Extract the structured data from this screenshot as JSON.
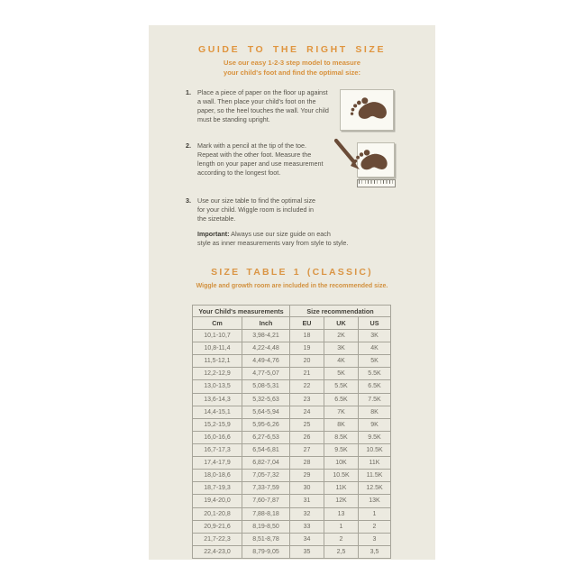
{
  "guide": {
    "title": "GUIDE TO THE RIGHT SIZE",
    "subtitle": "Use our easy 1-2-3 step model to measure\nyour child's foot and find the optimal size:",
    "steps": [
      {
        "number": "1.",
        "text": "Place a piece of paper on the floor up against\na wall. Then place your child's foot on the\npaper, so the heel touches the wall. Your child\nmust be standing upright."
      },
      {
        "number": "2.",
        "text": "Mark with a pencil at the tip of the toe.\nRepeat with the other foot. Measure the\nlength on your paper and use measurement\naccording to the longest foot."
      },
      {
        "number": "3.",
        "text": "Use our size table to find the optimal size\nfor your child. Wiggle room is included in\nthe sizetable."
      }
    ],
    "important_label": "Important:",
    "important_text": " Always use our size guide on each\nstyle as inner measurements vary from style to style.",
    "icons": [
      "footprint-icon",
      "footprint-pencil-icon",
      "ruler-icon"
    ]
  },
  "size_table": {
    "heading": "SIZE TABLE 1 (CLASSIC)",
    "caption": "Wiggle and growth room are included in the recommended size.",
    "group_headers": [
      "Your Child's measurements",
      "Size recommendation"
    ],
    "columns": [
      "Cm",
      "Inch",
      "EU",
      "UK",
      "US"
    ],
    "rows": [
      [
        "10,1-10,7",
        "3,98-4,21",
        "18",
        "2K",
        "3K"
      ],
      [
        "10,8-11,4",
        "4,22-4,48",
        "19",
        "3K",
        "4K"
      ],
      [
        "11,5-12,1",
        "4,49-4,76",
        "20",
        "4K",
        "5K"
      ],
      [
        "12,2-12,9",
        "4,77-5,07",
        "21",
        "5K",
        "5.5K"
      ],
      [
        "13,0-13,5",
        "5,08-5,31",
        "22",
        "5.5K",
        "6.5K"
      ],
      [
        "13,6-14,3",
        "5,32-5,63",
        "23",
        "6.5K",
        "7.5K"
      ],
      [
        "14,4-15,1",
        "5,64-5,94",
        "24",
        "7K",
        "8K"
      ],
      [
        "15,2-15,9",
        "5,95-6,26",
        "25",
        "8K",
        "9K"
      ],
      [
        "16,0-16,6",
        "6,27-6,53",
        "26",
        "8.5K",
        "9.5K"
      ],
      [
        "16,7-17,3",
        "6,54-6,81",
        "27",
        "9.5K",
        "10.5K"
      ],
      [
        "17,4-17,9",
        "6,82-7,04",
        "28",
        "10K",
        "11K"
      ],
      [
        "18,0-18,6",
        "7,05-7,32",
        "29",
        "10.5K",
        "11.5K"
      ],
      [
        "18,7-19,3",
        "7,33-7,59",
        "30",
        "11K",
        "12.5K"
      ],
      [
        "19,4-20,0",
        "7,60-7,87",
        "31",
        "12K",
        "13K"
      ],
      [
        "20,1-20,8",
        "7,88-8,18",
        "32",
        "13",
        "1"
      ],
      [
        "20,9-21,6",
        "8,19-8,50",
        "33",
        "1",
        "2"
      ],
      [
        "21,7-22,3",
        "8,51-8,78",
        "34",
        "2",
        "3"
      ],
      [
        "22,4-23,0",
        "8,79-9,05",
        "35",
        "2,5",
        "3,5"
      ]
    ]
  },
  "colors": {
    "page_bg": "#FFFFFF",
    "panel_bg": "#ECEAE0",
    "accent_orange": "#E0953F",
    "caption_orange": "#D8913C",
    "text": "#57544B",
    "text_dark": "#3C3A33",
    "icon_brown": "#6A4B37",
    "table_border": "#A6A499"
  }
}
